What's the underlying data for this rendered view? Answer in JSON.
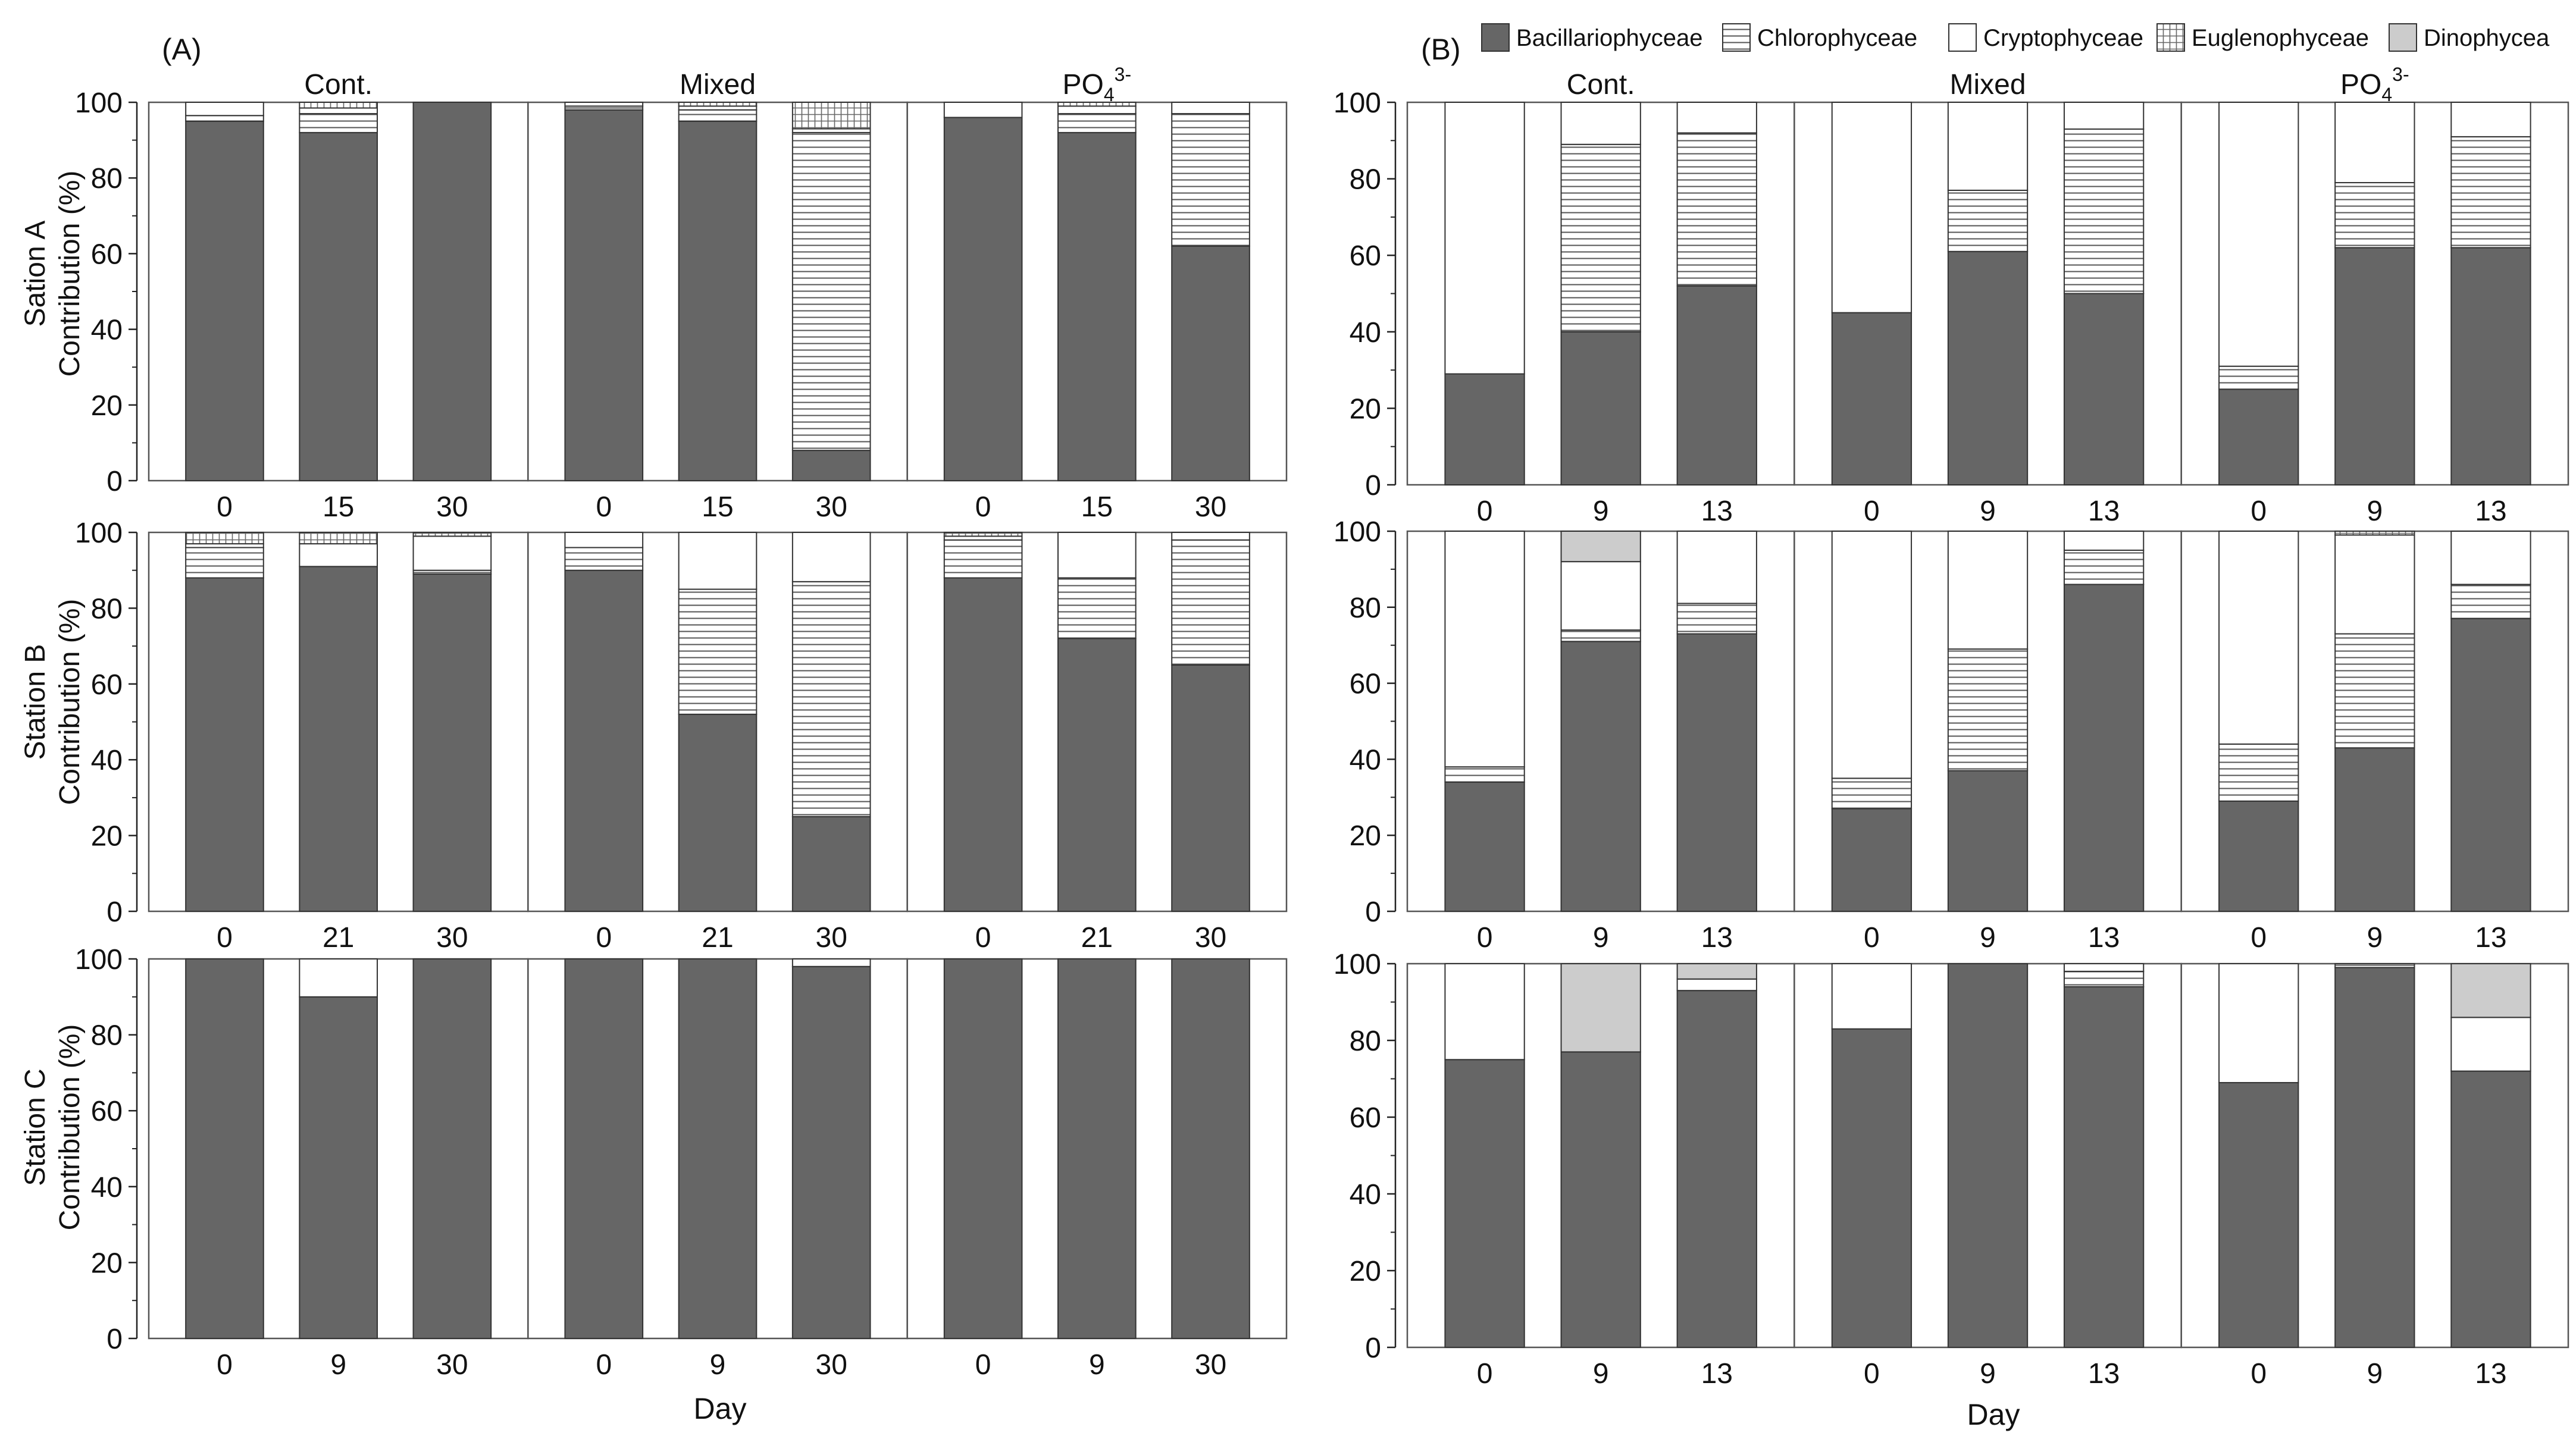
{
  "legend": [
    {
      "name": "Bacillariophyceae",
      "pattern": "solid-dark"
    },
    {
      "name": "Chlorophyceae",
      "pattern": "horizontal-lines"
    },
    {
      "name": "Cryptophyceae",
      "pattern": "white"
    },
    {
      "name": "Euglenophyceae",
      "pattern": "grid"
    },
    {
      "name": "Dinophycea",
      "pattern": "solid-light"
    }
  ],
  "colors": {
    "bacillariophyceae": "#666666",
    "dinophycea": "#cccccc",
    "axis": "#222222",
    "frame": "#555555"
  },
  "x_axis_title": "Day",
  "chart_data": [
    {
      "type": "stacked-bar",
      "panel": "A",
      "panel_label": "(A)",
      "station": "A",
      "ylabel_station": "Sation A",
      "ylabel_measure": "Contribution (%)",
      "ylim": [
        0,
        100
      ],
      "yticks": [
        "0",
        "20",
        "40",
        "60",
        "80",
        "100"
      ],
      "groups": [
        {
          "name": "Cont.",
          "categories": [
            "0",
            "15",
            "30"
          ]
        },
        {
          "name": "Mixed",
          "categories": [
            "0",
            "15",
            "30"
          ]
        },
        {
          "name": "PO43-",
          "name_base": "PO",
          "name_sub": "4",
          "name_sup": "3-",
          "categories": [
            "0",
            "15",
            "30"
          ]
        }
      ],
      "series": [
        {
          "name": "Bacillariophyceae",
          "values": [
            [
              95,
              92,
              100
            ],
            [
              98,
              95,
              8
            ],
            [
              96,
              92,
              62
            ]
          ]
        },
        {
          "name": "Chlorophyceae",
          "values": [
            [
              1.5,
              5,
              0
            ],
            [
              1,
              3,
              84
            ],
            [
              0,
              5,
              35
            ]
          ]
        },
        {
          "name": "Cryptophyceae",
          "values": [
            [
              3.5,
              1.5,
              0
            ],
            [
              1,
              1,
              1
            ],
            [
              4,
              2,
              3
            ]
          ]
        },
        {
          "name": "Euglenophyceae",
          "values": [
            [
              0,
              1.5,
              0
            ],
            [
              0,
              1,
              7
            ],
            [
              0,
              1,
              0
            ]
          ]
        },
        {
          "name": "Dinophycea",
          "values": [
            [
              0,
              0,
              0
            ],
            [
              0,
              0,
              0
            ],
            [
              0,
              0,
              0
            ]
          ]
        }
      ]
    },
    {
      "type": "stacked-bar",
      "panel": "A",
      "station": "B",
      "ylabel_station": "Station B",
      "ylabel_measure": "Contribution (%)",
      "ylim": [
        0,
        100
      ],
      "yticks": [
        "0",
        "20",
        "40",
        "60",
        "80",
        "100"
      ],
      "groups": [
        {
          "name": "Cont.",
          "categories": [
            "0",
            "21",
            "30"
          ]
        },
        {
          "name": "Mixed",
          "categories": [
            "0",
            "21",
            "30"
          ]
        },
        {
          "name": "PO43-",
          "categories": [
            "0",
            "21",
            "30"
          ]
        }
      ],
      "series": [
        {
          "name": "Bacillariophyceae",
          "values": [
            [
              88,
              91,
              89
            ],
            [
              90,
              52,
              25
            ],
            [
              88,
              72,
              65
            ]
          ]
        },
        {
          "name": "Chlorophyceae",
          "values": [
            [
              8,
              0,
              1
            ],
            [
              6,
              33,
              62
            ],
            [
              10,
              16,
              33
            ]
          ]
        },
        {
          "name": "Cryptophyceae",
          "values": [
            [
              1,
              6,
              9
            ],
            [
              4,
              15,
              13
            ],
            [
              1,
              12,
              2
            ]
          ]
        },
        {
          "name": "Euglenophyceae",
          "values": [
            [
              3,
              3,
              1
            ],
            [
              0,
              0,
              0
            ],
            [
              1,
              0,
              0
            ]
          ]
        },
        {
          "name": "Dinophycea",
          "values": [
            [
              0,
              0,
              0
            ],
            [
              0,
              0,
              0
            ],
            [
              0,
              0,
              0
            ]
          ]
        }
      ]
    },
    {
      "type": "stacked-bar",
      "panel": "A",
      "station": "C",
      "ylabel_station": "Station C",
      "ylabel_measure": "Contribution (%)",
      "ylim": [
        0,
        100
      ],
      "yticks": [
        "0",
        "20",
        "40",
        "60",
        "80",
        "100"
      ],
      "groups": [
        {
          "name": "Cont.",
          "categories": [
            "0",
            "9",
            "30"
          ]
        },
        {
          "name": "Mixed",
          "categories": [
            "0",
            "9",
            "30"
          ]
        },
        {
          "name": "PO43-",
          "categories": [
            "0",
            "9",
            "30"
          ]
        }
      ],
      "series": [
        {
          "name": "Bacillariophyceae",
          "values": [
            [
              100,
              90,
              100
            ],
            [
              100,
              100,
              98
            ],
            [
              100,
              100,
              100
            ]
          ]
        },
        {
          "name": "Chlorophyceae",
          "values": [
            [
              0,
              0,
              0
            ],
            [
              0,
              0,
              0
            ],
            [
              0,
              0,
              0
            ]
          ]
        },
        {
          "name": "Cryptophyceae",
          "values": [
            [
              0,
              10,
              0
            ],
            [
              0,
              0,
              2
            ],
            [
              0,
              0,
              0
            ]
          ]
        },
        {
          "name": "Euglenophyceae",
          "values": [
            [
              0,
              0,
              0
            ],
            [
              0,
              0,
              0
            ],
            [
              0,
              0,
              0
            ]
          ]
        },
        {
          "name": "Dinophycea",
          "values": [
            [
              0,
              0,
              0
            ],
            [
              0,
              0,
              0
            ],
            [
              0,
              0,
              0
            ]
          ]
        }
      ]
    },
    {
      "type": "stacked-bar",
      "panel": "B",
      "panel_label": "(B)",
      "station": "A",
      "ylim": [
        0,
        100
      ],
      "yticks": [
        "0",
        "20",
        "40",
        "60",
        "80",
        "100"
      ],
      "groups": [
        {
          "name": "Cont.",
          "categories": [
            "0",
            "9",
            "13"
          ]
        },
        {
          "name": "Mixed",
          "categories": [
            "0",
            "9",
            "13"
          ]
        },
        {
          "name": "PO43-",
          "name_base": "PO",
          "name_sub": "4",
          "name_sup": "3-",
          "categories": [
            "0",
            "9",
            "13"
          ]
        }
      ],
      "series": [
        {
          "name": "Bacillariophyceae",
          "values": [
            [
              29,
              40,
              52
            ],
            [
              45,
              61,
              50
            ],
            [
              25,
              62,
              62
            ]
          ]
        },
        {
          "name": "Chlorophyceae",
          "values": [
            [
              0,
              49,
              40
            ],
            [
              0,
              16,
              43
            ],
            [
              6,
              17,
              29
            ]
          ]
        },
        {
          "name": "Cryptophyceae",
          "values": [
            [
              71,
              11,
              8
            ],
            [
              55,
              23,
              7
            ],
            [
              69,
              21,
              9
            ]
          ]
        },
        {
          "name": "Euglenophyceae",
          "values": [
            [
              0,
              0,
              0
            ],
            [
              0,
              0,
              0
            ],
            [
              0,
              0,
              0
            ]
          ]
        },
        {
          "name": "Dinophycea",
          "values": [
            [
              0,
              0,
              0
            ],
            [
              0,
              0,
              0
            ],
            [
              0,
              0,
              0
            ]
          ]
        }
      ]
    },
    {
      "type": "stacked-bar",
      "panel": "B",
      "station": "B",
      "ylim": [
        0,
        100
      ],
      "yticks": [
        "0",
        "20",
        "40",
        "60",
        "80",
        "100"
      ],
      "groups": [
        {
          "name": "Cont.",
          "categories": [
            "0",
            "9",
            "13"
          ]
        },
        {
          "name": "Mixed",
          "categories": [
            "0",
            "9",
            "13"
          ]
        },
        {
          "name": "PO43-",
          "categories": [
            "0",
            "9",
            "13"
          ]
        }
      ],
      "series": [
        {
          "name": "Bacillariophyceae",
          "values": [
            [
              34,
              71,
              73
            ],
            [
              27,
              37,
              86
            ],
            [
              29,
              43,
              77
            ]
          ]
        },
        {
          "name": "Chlorophyceae",
          "values": [
            [
              4,
              3,
              8
            ],
            [
              8,
              32,
              9
            ],
            [
              15,
              30,
              9
            ]
          ]
        },
        {
          "name": "Cryptophyceae",
          "values": [
            [
              62,
              18,
              19
            ],
            [
              65,
              31,
              5
            ],
            [
              56,
              26,
              14
            ]
          ]
        },
        {
          "name": "Euglenophyceae",
          "values": [
            [
              0,
              0,
              0
            ],
            [
              0,
              0,
              0
            ],
            [
              0,
              1,
              0
            ]
          ]
        },
        {
          "name": "Dinophycea",
          "values": [
            [
              0,
              8,
              0
            ],
            [
              0,
              0,
              0
            ],
            [
              0,
              0,
              0
            ]
          ]
        }
      ]
    },
    {
      "type": "stacked-bar",
      "panel": "B",
      "station": "C",
      "ylim": [
        0,
        100
      ],
      "yticks": [
        "0",
        "20",
        "40",
        "60",
        "80",
        "100"
      ],
      "groups": [
        {
          "name": "Cont.",
          "categories": [
            "0",
            "9",
            "13"
          ]
        },
        {
          "name": "Mixed",
          "categories": [
            "0",
            "9",
            "13"
          ]
        },
        {
          "name": "PO43-",
          "categories": [
            "0",
            "9",
            "13"
          ]
        }
      ],
      "series": [
        {
          "name": "Bacillariophyceae",
          "values": [
            [
              75,
              77,
              93
            ],
            [
              83,
              100,
              94
            ],
            [
              69,
              99,
              72
            ]
          ]
        },
        {
          "name": "Chlorophyceae",
          "values": [
            [
              0,
              0,
              0
            ],
            [
              0,
              0,
              4
            ],
            [
              0,
              1,
              0
            ]
          ]
        },
        {
          "name": "Cryptophyceae",
          "values": [
            [
              25,
              0,
              3
            ],
            [
              17,
              0,
              2
            ],
            [
              31,
              0,
              14
            ]
          ]
        },
        {
          "name": "Euglenophyceae",
          "values": [
            [
              0,
              0,
              0
            ],
            [
              0,
              0,
              0
            ],
            [
              0,
              0,
              0
            ]
          ]
        },
        {
          "name": "Dinophycea",
          "values": [
            [
              0,
              23,
              4
            ],
            [
              0,
              0,
              0
            ],
            [
              0,
              0,
              14
            ]
          ]
        }
      ]
    }
  ]
}
